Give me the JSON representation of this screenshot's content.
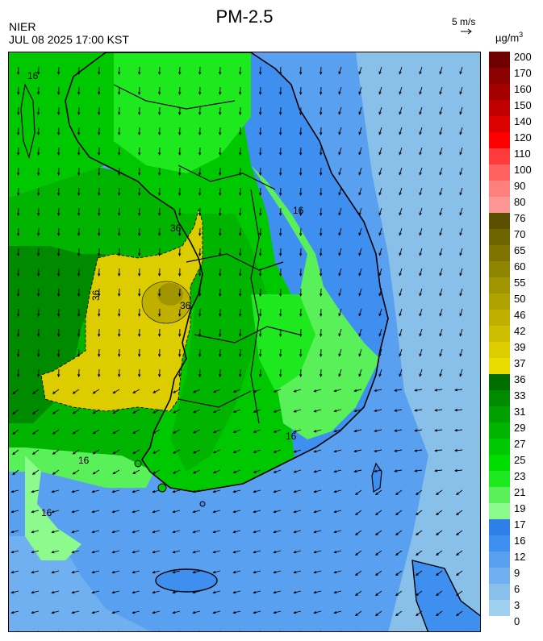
{
  "header": {
    "title": "PM-2.5",
    "agency": "NIER",
    "datetime": "JUL 08 2025 17:00 KST",
    "ref_vector_label": "5 m/s",
    "unit_label": "µg/m",
    "unit_exponent": "3"
  },
  "colorbar": {
    "levels": [
      {
        "label": "200",
        "color": "#6e0000"
      },
      {
        "label": "170",
        "color": "#8b0000"
      },
      {
        "label": "160",
        "color": "#a40000"
      },
      {
        "label": "150",
        "color": "#c00000"
      },
      {
        "label": "140",
        "color": "#dc0000"
      },
      {
        "label": "120",
        "color": "#ff0000"
      },
      {
        "label": "110",
        "color": "#ff3a3a"
      },
      {
        "label": "100",
        "color": "#ff6161"
      },
      {
        "label": "90",
        "color": "#ff7e7e"
      },
      {
        "label": "80",
        "color": "#ff9696"
      },
      {
        "label": "76",
        "color": "#5a5000"
      },
      {
        "label": "70",
        "color": "#6e6400"
      },
      {
        "label": "65",
        "color": "#7f7400"
      },
      {
        "label": "60",
        "color": "#8f8400"
      },
      {
        "label": "55",
        "color": "#a09400"
      },
      {
        "label": "50",
        "color": "#b0a200"
      },
      {
        "label": "46",
        "color": "#bfb000"
      },
      {
        "label": "42",
        "color": "#cdbe00"
      },
      {
        "label": "39",
        "color": "#dccc00"
      },
      {
        "label": "37",
        "color": "#eadb00"
      },
      {
        "label": "36",
        "color": "#006e00"
      },
      {
        "label": "33",
        "color": "#008a00"
      },
      {
        "label": "31",
        "color": "#00a000"
      },
      {
        "label": "29",
        "color": "#00b400"
      },
      {
        "label": "27",
        "color": "#00c800"
      },
      {
        "label": "25",
        "color": "#00dc00"
      },
      {
        "label": "23",
        "color": "#1ee81e"
      },
      {
        "label": "21",
        "color": "#5af05a"
      },
      {
        "label": "19",
        "color": "#8cfa8c"
      },
      {
        "label": "17",
        "color": "#2f7fe8"
      },
      {
        "label": "16",
        "color": "#3f8ff0"
      },
      {
        "label": "12",
        "color": "#5aa0f0"
      },
      {
        "label": "9",
        "color": "#70aff0"
      },
      {
        "label": "6",
        "color": "#88c0ea"
      },
      {
        "label": "3",
        "color": "#a0d0f0"
      },
      {
        "label": "0",
        "color": "#a0d0f0"
      }
    ]
  },
  "map": {
    "contour_labels": [
      "36",
      "36",
      "36",
      "16",
      "16",
      "16",
      "16",
      "16"
    ]
  }
}
